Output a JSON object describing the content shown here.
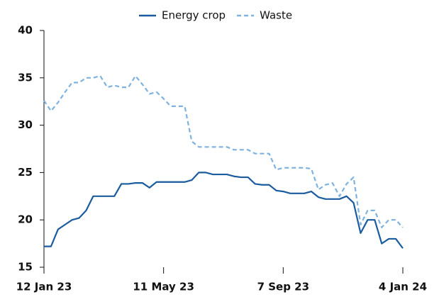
{
  "chart_data": {
    "type": "line",
    "x": [
      "2023-01-12",
      "2023-01-19",
      "2023-01-26",
      "2023-02-02",
      "2023-02-09",
      "2023-02-16",
      "2023-02-23",
      "2023-03-02",
      "2023-03-09",
      "2023-03-16",
      "2023-03-23",
      "2023-03-30",
      "2023-04-06",
      "2023-04-13",
      "2023-04-20",
      "2023-04-27",
      "2023-05-04",
      "2023-05-11",
      "2023-05-18",
      "2023-05-25",
      "2023-06-01",
      "2023-06-08",
      "2023-06-15",
      "2023-06-22",
      "2023-06-29",
      "2023-07-06",
      "2023-07-13",
      "2023-07-20",
      "2023-07-27",
      "2023-08-03",
      "2023-08-10",
      "2023-08-17",
      "2023-08-24",
      "2023-08-31",
      "2023-09-07",
      "2023-09-14",
      "2023-09-21",
      "2023-09-28",
      "2023-10-05",
      "2023-10-12",
      "2023-10-19",
      "2023-10-26",
      "2023-11-02",
      "2023-11-09",
      "2023-11-16",
      "2023-11-23",
      "2023-11-30",
      "2023-12-07",
      "2023-12-14",
      "2023-12-21",
      "2023-12-28",
      "2024-01-04"
    ],
    "series": [
      {
        "name": "Energy crop",
        "color": "#1a5c9e",
        "dash": false,
        "values": [
          17.2,
          17.2,
          19.0,
          19.5,
          20.0,
          20.2,
          21.0,
          22.5,
          22.5,
          22.5,
          22.5,
          23.8,
          23.8,
          23.9,
          23.9,
          23.4,
          24.0,
          24.0,
          24.0,
          24.0,
          24.0,
          24.2,
          25.0,
          25.0,
          24.8,
          24.8,
          24.8,
          24.6,
          24.5,
          24.5,
          23.8,
          23.7,
          23.7,
          23.1,
          23.0,
          22.8,
          22.8,
          22.8,
          23.0,
          22.4,
          22.2,
          22.2,
          22.2,
          22.5,
          21.8,
          18.6,
          20.0,
          20.0,
          17.5,
          18.0,
          18.0,
          17.0
        ]
      },
      {
        "name": "Waste",
        "color": "#7fb2df",
        "dash": true,
        "values": [
          32.6,
          31.5,
          32.4,
          33.5,
          34.5,
          34.5,
          35.0,
          35.0,
          35.2,
          34.0,
          34.2,
          34.0,
          34.0,
          35.2,
          34.3,
          33.3,
          33.5,
          32.8,
          32.0,
          32.0,
          32.0,
          28.3,
          27.7,
          27.7,
          27.7,
          27.7,
          27.7,
          27.4,
          27.4,
          27.4,
          27.0,
          27.0,
          27.0,
          25.3,
          25.5,
          25.5,
          25.5,
          25.5,
          25.4,
          23.2,
          23.7,
          23.9,
          22.5,
          23.8,
          24.5,
          19.5,
          21.0,
          21.0,
          19.2,
          20.0,
          20.0,
          19.2
        ]
      }
    ],
    "xlim": [
      "2023-01-12",
      "2024-01-04"
    ],
    "xticks": [
      {
        "value": "2023-01-12",
        "label": "12 Jan 23"
      },
      {
        "value": "2023-05-11",
        "label": "11 May 23"
      },
      {
        "value": "2023-09-07",
        "label": "7 Sep 23"
      },
      {
        "value": "2024-01-04",
        "label": "4 Jan 24"
      }
    ],
    "ylim": [
      15,
      40
    ],
    "yticks": [
      15,
      20,
      25,
      30,
      35,
      40
    ],
    "legend": "top"
  }
}
